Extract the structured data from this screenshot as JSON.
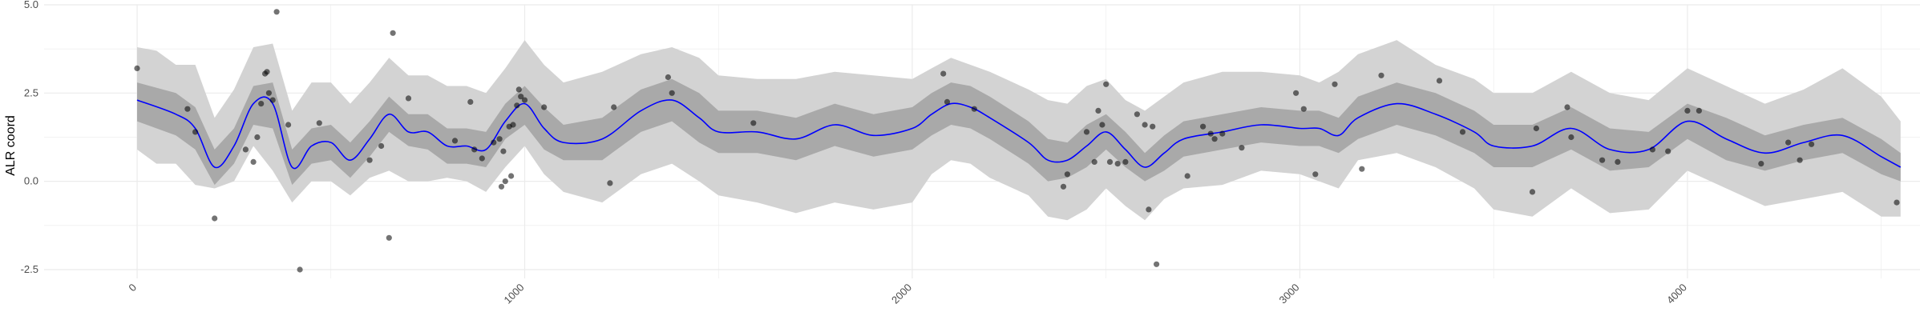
{
  "chart_data": {
    "type": "line",
    "title": "",
    "xlabel": "",
    "ylabel": "ALR coord",
    "xlim": [
      -240,
      4600
    ],
    "ylim": [
      -2.75,
      5.0
    ],
    "grid": true,
    "x_ticks": [
      0,
      1000,
      2000,
      3000,
      4000
    ],
    "x_tick_labels": [
      "0",
      "1000",
      "2000",
      "3000",
      "4000"
    ],
    "y_ticks": [
      -2.5,
      0.0,
      2.5,
      5.0
    ],
    "y_tick_labels": [
      "-2.5",
      "0.0",
      "2.5",
      "5.0"
    ],
    "colors": {
      "line": "#0000ff",
      "inner_band": "#a9a9a9",
      "outer_band": "#d3d3d3",
      "points": "#000000",
      "grid": "#ebebeb"
    },
    "series": [
      {
        "kind": "line",
        "x": [
          0,
          100,
          150,
          200,
          250,
          300,
          350,
          400,
          450,
          500,
          550,
          600,
          650,
          700,
          750,
          800,
          850,
          900,
          950,
          1000,
          1050,
          1100,
          1200,
          1300,
          1380,
          1450,
          1500,
          1600,
          1700,
          1800,
          1900,
          2000,
          2050,
          2100,
          2150,
          2200,
          2300,
          2350,
          2400,
          2450,
          2500,
          2550,
          2600,
          2650,
          2700,
          2800,
          2900,
          3000,
          3050,
          3100,
          3150,
          3250,
          3350,
          3450,
          3500,
          3600,
          3700,
          3800,
          3900,
          4000,
          4100,
          4200,
          4300,
          4400,
          4500,
          4550
        ],
        "y": [
          2.3,
          1.9,
          1.5,
          0.4,
          1.0,
          2.2,
          2.2,
          0.4,
          1.0,
          1.1,
          0.6,
          1.2,
          1.9,
          1.4,
          1.4,
          1.0,
          1.0,
          0.9,
          1.7,
          2.2,
          1.5,
          1.1,
          1.2,
          2.0,
          2.3,
          1.8,
          1.4,
          1.4,
          1.2,
          1.6,
          1.3,
          1.5,
          1.9,
          2.2,
          2.1,
          1.8,
          1.1,
          0.6,
          0.6,
          1.0,
          1.4,
          0.9,
          0.4,
          0.8,
          1.2,
          1.4,
          1.6,
          1.5,
          1.5,
          1.3,
          1.8,
          2.2,
          1.9,
          1.4,
          1.0,
          1.0,
          1.5,
          0.9,
          0.9,
          1.7,
          1.2,
          0.8,
          1.1,
          1.3,
          0.7,
          0.4
        ]
      },
      {
        "kind": "inner_band",
        "x": [
          0,
          100,
          150,
          200,
          250,
          300,
          350,
          400,
          450,
          500,
          550,
          600,
          650,
          700,
          750,
          800,
          850,
          900,
          950,
          1000,
          1050,
          1100,
          1200,
          1300,
          1380,
          1450,
          1500,
          1600,
          1700,
          1800,
          1900,
          2000,
          2050,
          2100,
          2150,
          2200,
          2300,
          2350,
          2400,
          2450,
          2500,
          2550,
          2600,
          2650,
          2700,
          2800,
          2900,
          3000,
          3050,
          3100,
          3150,
          3250,
          3350,
          3450,
          3500,
          3600,
          3700,
          3800,
          3900,
          4000,
          4100,
          4200,
          4300,
          4400,
          4500,
          4550
        ],
        "lower": [
          1.7,
          1.3,
          0.9,
          -0.1,
          0.5,
          1.6,
          1.5,
          -0.1,
          0.5,
          0.6,
          0.1,
          0.7,
          1.4,
          1.0,
          0.9,
          0.5,
          0.5,
          0.4,
          1.2,
          1.6,
          0.9,
          0.6,
          0.6,
          1.4,
          1.7,
          1.1,
          0.8,
          0.8,
          0.6,
          1.0,
          0.7,
          0.9,
          1.3,
          1.6,
          1.5,
          1.2,
          0.5,
          0.0,
          0.1,
          0.4,
          0.9,
          0.4,
          0.0,
          0.3,
          0.7,
          0.9,
          1.1,
          1.0,
          1.0,
          0.8,
          1.2,
          1.6,
          1.3,
          0.8,
          0.4,
          0.4,
          0.9,
          0.3,
          0.4,
          1.2,
          0.6,
          0.3,
          0.6,
          0.8,
          0.2,
          0.0
        ],
        "upper": [
          2.8,
          2.5,
          2.1,
          0.9,
          1.5,
          2.7,
          2.8,
          0.9,
          1.5,
          1.6,
          1.1,
          1.7,
          2.4,
          1.9,
          1.9,
          1.5,
          1.5,
          1.4,
          2.2,
          2.7,
          2.1,
          1.6,
          1.8,
          2.6,
          2.9,
          2.5,
          2.0,
          2.0,
          1.8,
          2.2,
          1.9,
          2.1,
          2.5,
          2.8,
          2.7,
          2.4,
          1.7,
          1.2,
          1.1,
          1.6,
          1.9,
          1.4,
          0.8,
          1.3,
          1.7,
          1.9,
          2.1,
          2.0,
          2.0,
          1.8,
          2.4,
          2.8,
          2.5,
          2.0,
          1.6,
          1.6,
          2.1,
          1.5,
          1.4,
          2.2,
          1.8,
          1.3,
          1.6,
          1.8,
          1.2,
          0.8
        ]
      },
      {
        "kind": "outer_band",
        "x": [
          0,
          50,
          100,
          150,
          200,
          250,
          300,
          350,
          400,
          450,
          500,
          550,
          600,
          650,
          700,
          750,
          800,
          850,
          900,
          950,
          1000,
          1050,
          1100,
          1200,
          1300,
          1380,
          1450,
          1500,
          1600,
          1700,
          1800,
          1900,
          2000,
          2050,
          2100,
          2150,
          2200,
          2300,
          2350,
          2400,
          2450,
          2500,
          2550,
          2600,
          2650,
          2700,
          2800,
          2900,
          3000,
          3050,
          3100,
          3150,
          3250,
          3350,
          3450,
          3500,
          3600,
          3700,
          3800,
          3900,
          4000,
          4100,
          4200,
          4300,
          4400,
          4500,
          4550
        ],
        "lower": [
          0.9,
          0.5,
          0.5,
          -0.1,
          -0.2,
          0.0,
          1.0,
          0.3,
          -0.6,
          0.0,
          0.0,
          -0.4,
          0.1,
          0.3,
          0.0,
          0.0,
          0.1,
          0.0,
          -0.3,
          0.4,
          1.0,
          0.2,
          -0.3,
          -0.6,
          0.2,
          0.5,
          0.0,
          -0.4,
          -0.6,
          -0.9,
          -0.6,
          -0.8,
          -0.6,
          0.2,
          0.6,
          0.5,
          0.1,
          -0.4,
          -1.0,
          -1.1,
          -0.8,
          -0.2,
          -0.7,
          -1.1,
          -0.5,
          -0.2,
          -0.1,
          0.3,
          0.2,
          0.0,
          -0.2,
          0.6,
          0.8,
          0.4,
          -0.2,
          -0.8,
          -1.0,
          -0.2,
          -0.9,
          -0.8,
          0.3,
          -0.2,
          -0.7,
          -0.5,
          -0.3,
          -1.0,
          -1.0
        ],
        "upper": [
          3.8,
          3.7,
          3.3,
          3.3,
          1.8,
          2.6,
          3.8,
          3.9,
          2.0,
          2.8,
          2.8,
          2.2,
          2.8,
          3.5,
          3.0,
          3.0,
          2.7,
          2.7,
          2.5,
          3.2,
          4.0,
          3.3,
          2.8,
          3.1,
          3.6,
          3.8,
          3.5,
          3.0,
          2.9,
          2.9,
          3.1,
          3.0,
          2.9,
          3.2,
          3.5,
          3.3,
          3.1,
          2.6,
          2.3,
          2.2,
          2.7,
          2.9,
          2.3,
          2.0,
          2.4,
          2.8,
          3.1,
          3.1,
          3.0,
          2.8,
          3.1,
          3.6,
          4.0,
          3.3,
          2.9,
          2.5,
          2.5,
          3.1,
          2.5,
          2.3,
          3.2,
          2.7,
          2.2,
          2.6,
          3.2,
          2.4,
          1.7
        ]
      },
      {
        "kind": "points",
        "x": [
          0,
          130,
          150,
          200,
          280,
          300,
          310,
          320,
          330,
          335,
          340,
          350,
          360,
          390,
          420,
          470,
          600,
          630,
          650,
          660,
          700,
          820,
          860,
          870,
          890,
          920,
          935,
          940,
          945,
          950,
          960,
          965,
          970,
          980,
          985,
          990,
          1000,
          1050,
          1220,
          1230,
          1370,
          1380,
          1590,
          2080,
          2090,
          2160,
          2390,
          2400,
          2450,
          2470,
          2480,
          2490,
          2500,
          2510,
          2530,
          2550,
          2580,
          2600,
          2610,
          2620,
          2630,
          2710,
          2750,
          2770,
          2780,
          2800,
          2850,
          2990,
          3010,
          3040,
          3090,
          3160,
          3210,
          3360,
          3420,
          3600,
          3610,
          3690,
          3700,
          3780,
          3820,
          3910,
          3950,
          4000,
          4030,
          4190,
          4260,
          4290,
          4320,
          4540
        ],
        "y": [
          3.2,
          2.05,
          1.4,
          -1.05,
          0.9,
          0.55,
          1.25,
          2.2,
          3.05,
          3.1,
          2.5,
          2.3,
          4.8,
          1.6,
          -2.5,
          1.65,
          0.6,
          1.0,
          -1.6,
          4.2,
          2.35,
          1.15,
          2.25,
          0.9,
          0.65,
          1.1,
          1.2,
          -0.15,
          0.85,
          0.0,
          1.55,
          0.15,
          1.6,
          2.15,
          2.6,
          2.4,
          2.3,
          2.1,
          -0.05,
          2.1,
          2.95,
          2.5,
          1.65,
          3.05,
          2.25,
          2.05,
          -0.15,
          0.2,
          1.4,
          0.55,
          2.0,
          1.6,
          2.75,
          0.55,
          0.5,
          0.55,
          1.9,
          1.6,
          -0.8,
          1.55,
          -2.35,
          0.15,
          1.55,
          1.35,
          1.2,
          1.35,
          0.95,
          2.5,
          2.05,
          0.2,
          2.75,
          0.35,
          3.0,
          2.85,
          1.4,
          -0.3,
          1.5,
          2.1,
          1.25,
          0.6,
          0.55,
          0.9,
          0.85,
          2.0,
          2.0,
          0.5,
          1.1,
          0.6,
          1.05,
          -0.6
        ]
      }
    ]
  }
}
